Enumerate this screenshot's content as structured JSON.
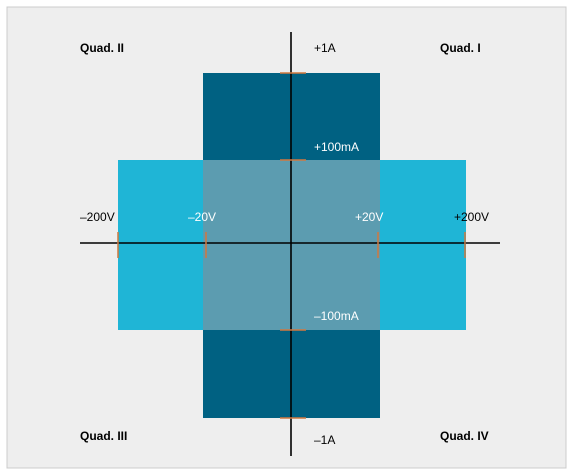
{
  "colors": {
    "panel_background": "#eeeeee",
    "panel_border": "#cccccc",
    "dark_region": "#006182",
    "light_region": "#1fb5d6",
    "overlap_region": "#5c9cb0",
    "axis": "#000000",
    "tick": "#d1783f"
  },
  "quadrants": {
    "q1": "Quad. I",
    "q2": "Quad. II",
    "q3": "Quad. III",
    "q4": "Quad. IV"
  },
  "current_labels": {
    "pos_1a": "+1A",
    "pos_100ma": "+100mA",
    "neg_100ma": "–100mA",
    "neg_1a": "–1A"
  },
  "voltage_labels": {
    "neg_200v": "–200V",
    "neg_20v": "–20V",
    "pos_20v": "+20V",
    "pos_200v": "+200V"
  }
}
